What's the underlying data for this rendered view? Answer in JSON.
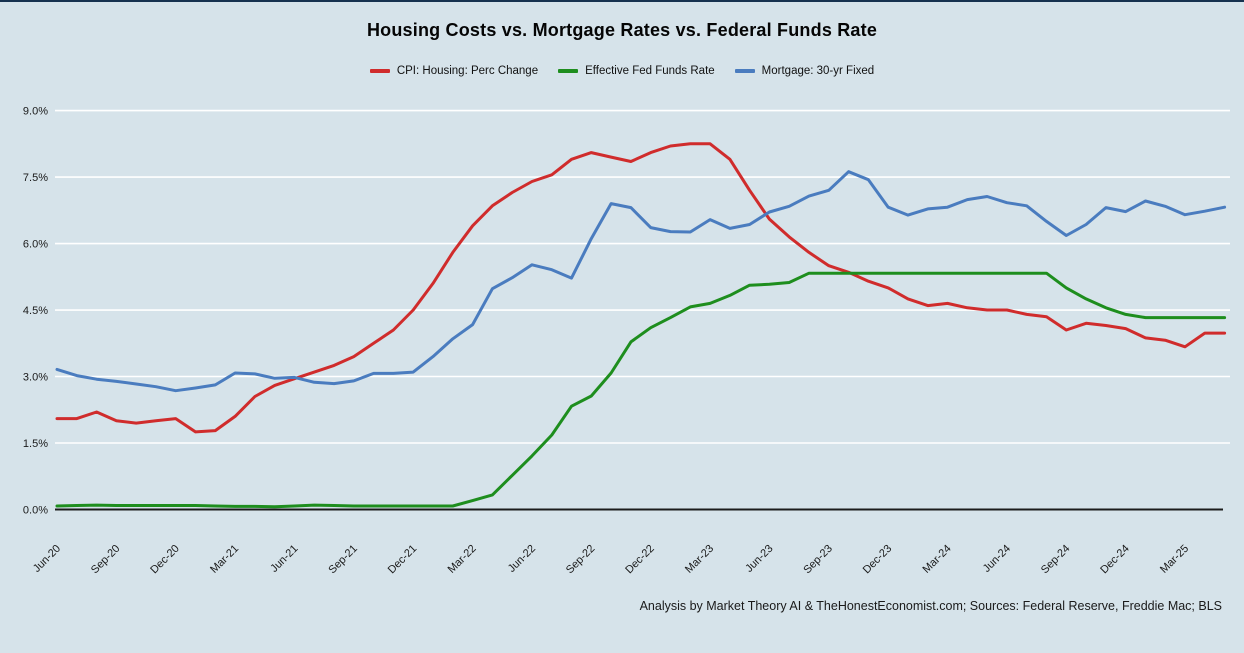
{
  "page": {
    "title": "Housing Costs vs. Mortgage Rates vs. Federal Funds Rate",
    "caption": "Analysis by Market Theory AI & TheHonestEconomist.com; Sources: Federal Reserve, Freddie Mac; BLS"
  },
  "chart_data": {
    "type": "line",
    "title": "Housing Costs vs. Mortgage Rates vs. Federal Funds Rate",
    "xlabel": "",
    "ylabel": "",
    "ylim": [
      0,
      9
    ],
    "ytick_labels": [
      "0.0%",
      "1.5%",
      "3.0%",
      "4.5%",
      "6.0%",
      "7.5%",
      "9.0%"
    ],
    "ytick_values": [
      0,
      1.5,
      3,
      4.5,
      6,
      7.5,
      9
    ],
    "x_tick_labels": [
      "Jun-20",
      "Sep-20",
      "Dec-20",
      "Mar-21",
      "Jun-21",
      "Sep-21",
      "Dec-21",
      "Mar-22",
      "Jun-22",
      "Sep-22",
      "Dec-22",
      "Mar-23",
      "Jun-23",
      "Sep-23",
      "Dec-23",
      "Mar-24",
      "Jun-24",
      "Sep-24",
      "Dec-24",
      "Mar-25"
    ],
    "x": [
      "Jun-20",
      "Jul-20",
      "Aug-20",
      "Sep-20",
      "Oct-20",
      "Nov-20",
      "Dec-20",
      "Jan-21",
      "Feb-21",
      "Mar-21",
      "Apr-21",
      "May-21",
      "Jun-21",
      "Jul-21",
      "Aug-21",
      "Sep-21",
      "Oct-21",
      "Nov-21",
      "Dec-21",
      "Jan-22",
      "Feb-22",
      "Mar-22",
      "Apr-22",
      "May-22",
      "Jun-22",
      "Jul-22",
      "Aug-22",
      "Sep-22",
      "Oct-22",
      "Nov-22",
      "Dec-22",
      "Jan-23",
      "Feb-23",
      "Mar-23",
      "Apr-23",
      "May-23",
      "Jun-23",
      "Jul-23",
      "Aug-23",
      "Sep-23",
      "Oct-23",
      "Nov-23",
      "Dec-23",
      "Jan-24",
      "Feb-24",
      "Mar-24",
      "Apr-24",
      "May-24",
      "Jun-24",
      "Jul-24",
      "Aug-24",
      "Sep-24",
      "Oct-24",
      "Nov-24",
      "Dec-24",
      "Jan-25",
      "Feb-25",
      "Mar-25",
      "Apr-25",
      "May-25"
    ],
    "series": [
      {
        "name": "CPI: Housing: Perc Change",
        "color": "#d02c2c",
        "values": [
          2.05,
          2.05,
          2.2,
          2.0,
          1.95,
          2.0,
          2.05,
          1.75,
          1.78,
          2.1,
          2.55,
          2.8,
          2.95,
          3.1,
          3.25,
          3.45,
          3.75,
          4.05,
          4.5,
          5.1,
          5.8,
          6.4,
          6.85,
          7.15,
          7.4,
          7.55,
          7.9,
          8.05,
          7.95,
          7.85,
          8.05,
          8.2,
          8.25,
          8.25,
          7.9,
          7.2,
          6.55,
          6.15,
          5.8,
          5.5,
          5.35,
          5.15,
          5.0,
          4.75,
          4.6,
          4.65,
          4.55,
          4.5,
          4.5,
          4.4,
          4.35,
          4.05,
          4.2,
          4.15,
          4.08,
          3.87,
          3.82,
          3.67,
          3.98,
          3.98
        ]
      },
      {
        "name": "Effective Fed Funds Rate",
        "color": "#1e8e1e",
        "values": [
          0.08,
          0.09,
          0.1,
          0.09,
          0.09,
          0.09,
          0.09,
          0.09,
          0.08,
          0.07,
          0.07,
          0.06,
          0.08,
          0.1,
          0.09,
          0.08,
          0.08,
          0.08,
          0.08,
          0.08,
          0.08,
          0.2,
          0.33,
          0.77,
          1.21,
          1.68,
          2.33,
          2.56,
          3.08,
          3.78,
          4.1,
          4.33,
          4.57,
          4.65,
          4.83,
          5.06,
          5.08,
          5.12,
          5.33,
          5.33,
          5.33,
          5.33,
          5.33,
          5.33,
          5.33,
          5.33,
          5.33,
          5.33,
          5.33,
          5.33,
          5.33,
          5.0,
          4.75,
          4.55,
          4.4,
          4.33,
          4.33,
          4.33,
          4.33,
          4.33
        ]
      },
      {
        "name": "Mortgage: 30-yr Fixed",
        "color": "#4a7cbf",
        "values": [
          3.16,
          3.02,
          2.94,
          2.89,
          2.83,
          2.77,
          2.68,
          2.74,
          2.81,
          3.08,
          3.06,
          2.96,
          2.98,
          2.87,
          2.84,
          2.9,
          3.07,
          3.07,
          3.1,
          3.45,
          3.85,
          4.17,
          4.98,
          5.23,
          5.52,
          5.41,
          5.22,
          6.11,
          6.9,
          6.81,
          6.36,
          6.27,
          6.26,
          6.54,
          6.34,
          6.43,
          6.71,
          6.84,
          7.07,
          7.2,
          7.62,
          7.44,
          6.82,
          6.64,
          6.78,
          6.82,
          6.99,
          7.06,
          6.92,
          6.85,
          6.5,
          6.18,
          6.43,
          6.81,
          6.72,
          6.96,
          6.84,
          6.65,
          6.73,
          6.82
        ]
      }
    ],
    "legend_position": "top-center",
    "grid": "horizontal-only",
    "colors": {
      "background": "#d6e3ea",
      "gridline": "#ffffff",
      "axis_line": "#1c1c1c",
      "tick_text": "#1a1a1a",
      "top_border": "#16324f"
    }
  }
}
